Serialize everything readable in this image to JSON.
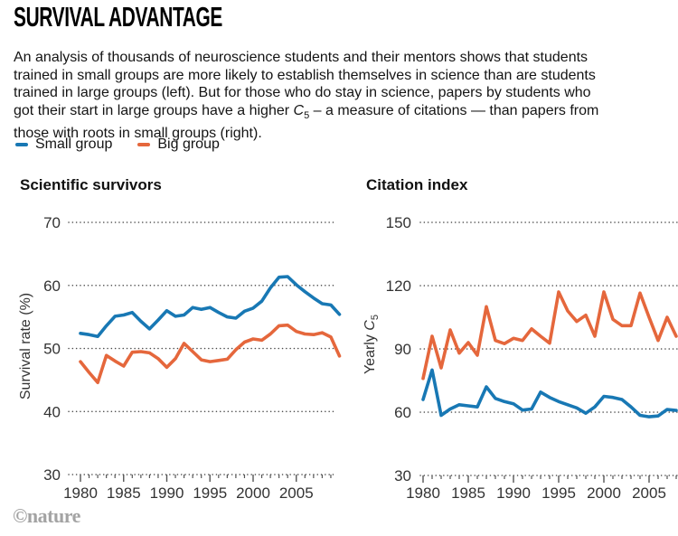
{
  "page": {
    "title": "SURVIVAL ADVANTAGE",
    "footer": "©nature"
  },
  "intro": {
    "part1": "An analysis of thousands of neuroscience students and their mentors shows that students trained in small groups are more likely to establish themselves in science than are students trained in large groups (left). But for those who do stay in science, papers by students who got their start in large groups have a higher ",
    "c": "C",
    "c_sub": "5",
    "part2": " – a measure of citations — than papers from those with roots in small groups (right)."
  },
  "legend": {
    "items": [
      {
        "label": "Small group",
        "color": "#1878b4"
      },
      {
        "label": "Big group",
        "color": "#e5673c"
      }
    ]
  },
  "colors": {
    "small_group": "#1878b4",
    "big_group": "#e5673c",
    "grid_dots": "#4a4a4a",
    "tick_text": "#333333"
  },
  "chart_data": [
    {
      "type": "line",
      "title": "Scientific survivors",
      "ylabel": "Survival rate (%)",
      "xlabel": "",
      "grid": "dotted-horizontal",
      "legend_position": "above-figure",
      "x": [
        1980,
        1981,
        1982,
        1983,
        1984,
        1985,
        1986,
        1987,
        1988,
        1989,
        1990,
        1991,
        1992,
        1993,
        1994,
        1995,
        1996,
        1997,
        1998,
        1999,
        2000,
        2001,
        2002,
        2003,
        2004,
        2005,
        2006,
        2007,
        2008,
        2009,
        2010
      ],
      "xticks": [
        1980,
        1985,
        1990,
        1995,
        2000,
        2005
      ],
      "yticks": [
        30,
        40,
        50,
        60,
        70
      ],
      "ylim": [
        30,
        73
      ],
      "series": [
        {
          "name": "Small group",
          "color": "#1878b4",
          "values": [
            52.4,
            52.2,
            51.9,
            53.6,
            55.1,
            55.3,
            55.7,
            54.3,
            53.1,
            54.5,
            56,
            55.1,
            55.3,
            56.5,
            56.2,
            56.5,
            55.7,
            55,
            54.8,
            55.9,
            56.4,
            57.5,
            59.6,
            61.3,
            61.4,
            60.1,
            59,
            58,
            57.1,
            56.9,
            55.4
          ]
        },
        {
          "name": "Big group",
          "color": "#e5673c",
          "values": [
            47.9,
            46.2,
            44.6,
            48.9,
            48,
            47.2,
            49.4,
            49.5,
            49.3,
            48.4,
            47,
            48.4,
            50.8,
            49.5,
            48.2,
            47.9,
            48.1,
            48.3,
            49.8,
            51,
            51.5,
            51.3,
            52.3,
            53.6,
            53.7,
            52.7,
            52.3,
            52.2,
            52.5,
            51.8,
            48.8
          ]
        }
      ]
    },
    {
      "type": "line",
      "title": "Citation index",
      "ylabel": {
        "prefix": "Yearly ",
        "var": "C",
        "sub": "5"
      },
      "xlabel": "",
      "grid": "dotted-horizontal",
      "legend_position": "above-figure",
      "x": [
        1980,
        1981,
        1982,
        1983,
        1984,
        1985,
        1986,
        1987,
        1988,
        1989,
        1990,
        1991,
        1992,
        1993,
        1994,
        1995,
        1996,
        1997,
        1998,
        1999,
        2000,
        2001,
        2002,
        2003,
        2004,
        2005,
        2006,
        2007,
        2008
      ],
      "xticks": [
        1980,
        1985,
        1990,
        1995,
        2000,
        2005
      ],
      "yticks": [
        30,
        60,
        90,
        120,
        150
      ],
      "ylim": [
        30,
        150
      ],
      "series": [
        {
          "name": "Small group",
          "color": "#1878b4",
          "values": [
            66,
            80,
            58.5,
            61.5,
            63.5,
            63,
            62.5,
            72,
            66.5,
            65,
            64,
            61,
            61.5,
            69.5,
            67,
            65,
            63.5,
            62,
            59.5,
            62.5,
            67.5,
            67,
            66,
            62.5,
            58.5,
            57.8,
            58.2,
            61.3,
            60.8
          ]
        },
        {
          "name": "Big group",
          "color": "#e5673c",
          "values": [
            76,
            96,
            81,
            99,
            88,
            93,
            87,
            110,
            94,
            92.5,
            95,
            94,
            99.5,
            96,
            92.7,
            117,
            108,
            103,
            106,
            96,
            117,
            104,
            101,
            101,
            116.5,
            105,
            94,
            105,
            96
          ]
        }
      ]
    }
  ]
}
